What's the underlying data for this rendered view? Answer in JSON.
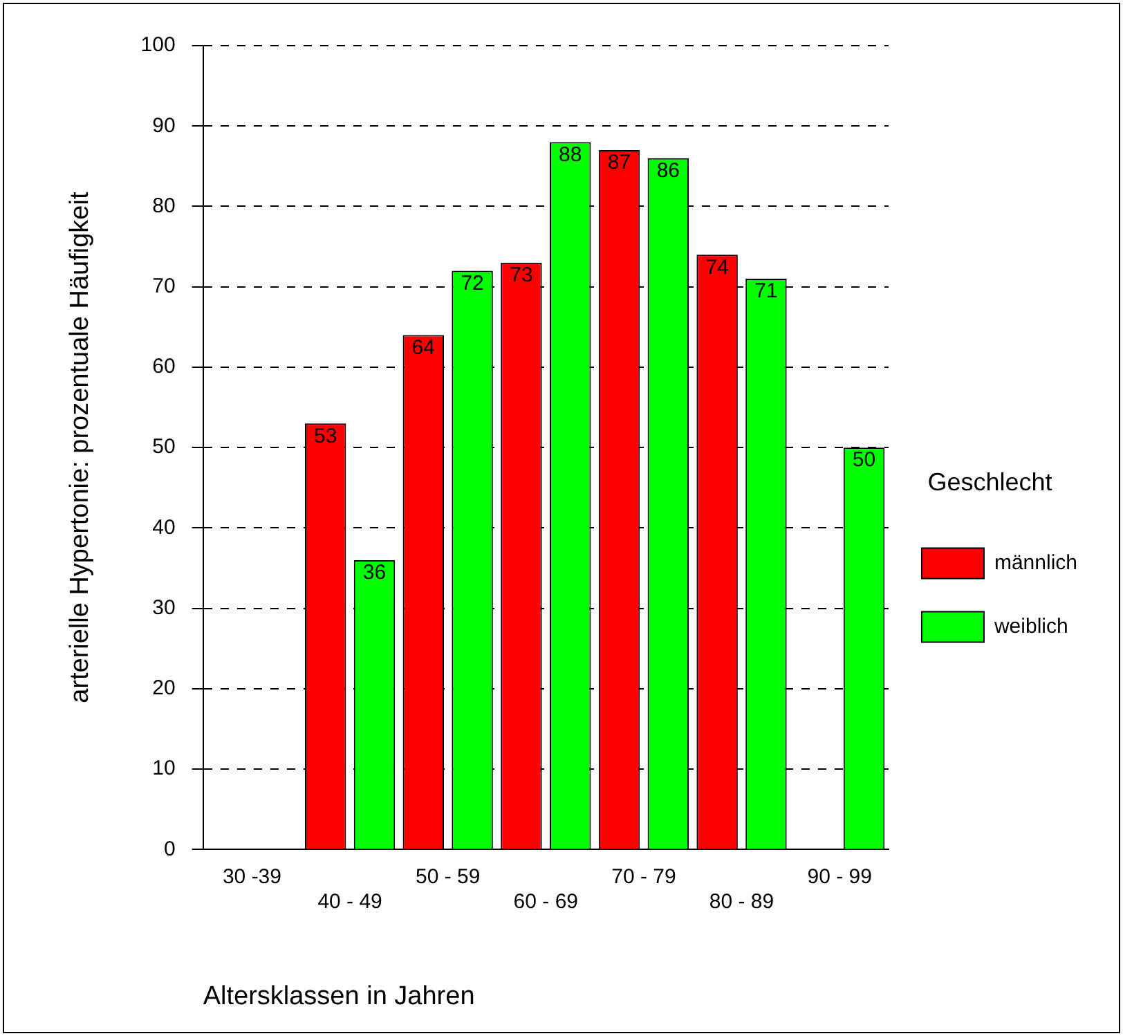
{
  "chart_data": {
    "type": "bar",
    "xlabel": "Altersklassen in Jahren",
    "ylabel": "arterielle Hypertonie: prozentuale Häufigkeit",
    "legend_title": "Geschlecht",
    "categories": [
      "30 -39",
      "40 - 49",
      "50 - 59",
      "60 - 69",
      "70 - 79",
      "80 - 89",
      "90 - 99"
    ],
    "series": [
      {
        "name": "männlich",
        "color": "#ff0000",
        "values": [
          null,
          53,
          64,
          73,
          87,
          74,
          null
        ]
      },
      {
        "name": "weiblich",
        "color": "#00ff00",
        "values": [
          null,
          36,
          72,
          88,
          86,
          71,
          50
        ]
      }
    ],
    "ylim": [
      0,
      100
    ],
    "yticks": [
      0,
      10,
      20,
      30,
      40,
      50,
      60,
      70,
      80,
      90,
      100
    ],
    "grid": "y",
    "legend": "right",
    "data_labels": true
  }
}
